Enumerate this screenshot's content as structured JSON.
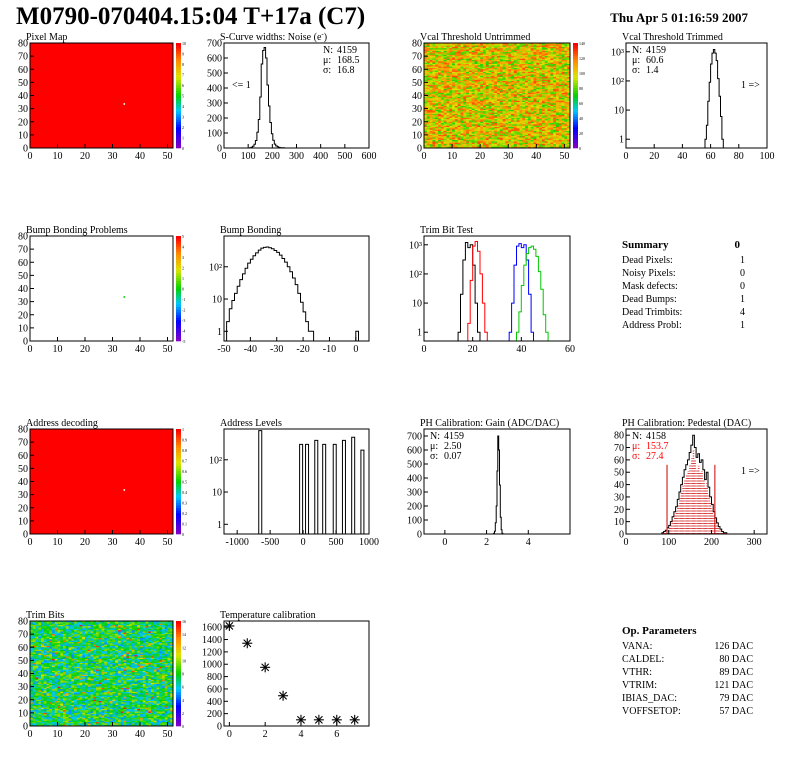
{
  "header": {
    "title": "M0790-070404.15:04 T+17a (C7)",
    "date": "Thu Apr  5 01:16:59 2007"
  },
  "palette": {
    "red": "#ff0000",
    "green_trim": "#00c800",
    "blue_trim": "#0000ff",
    "hist_line": "#000000"
  },
  "chart_data": [
    {
      "id": "pixel_map",
      "type": "heatmap",
      "title": "Pixel Map",
      "xlim": [
        0,
        52
      ],
      "ylim": [
        0,
        80
      ],
      "xticks": [
        "0",
        "10",
        "20",
        "30",
        "40",
        "50"
      ],
      "yticks": [
        "0",
        "10",
        "20",
        "30",
        "40",
        "50",
        "60",
        "70",
        "80"
      ],
      "fill": "uniform",
      "colorbar": {
        "min": 0,
        "max": 10,
        "labels": [
          "0",
          "1",
          "2",
          "3",
          "4",
          "5",
          "6",
          "7",
          "8",
          "9",
          "10"
        ]
      },
      "values": [
        [
          10
        ]
      ],
      "special_pixels": [
        {
          "x": 34,
          "y": 33,
          "value": 0
        }
      ]
    },
    {
      "id": "scurve_noise",
      "type": "histogram",
      "title": "S-Curve widths: Noise (e",
      "title_sup": "-",
      "title_tail": ")",
      "xlim": [
        0,
        600
      ],
      "ylim": [
        0,
        700
      ],
      "xticks": [
        "0",
        "100",
        "200",
        "300",
        "400",
        "500",
        "600"
      ],
      "yticks": [
        "0",
        "100",
        "200",
        "300",
        "400",
        "500",
        "600",
        "700"
      ],
      "stats": {
        "N": "4159",
        "mean": "168.5",
        "sigma": "16.8"
      },
      "stats_labels": {
        "N": "N:",
        "mean": "μ:",
        "sigma": "σ:"
      },
      "annotation": "<= 1",
      "bins": {
        "x0": 100,
        "width": 6,
        "values": [
          0,
          2,
          5,
          12,
          25,
          50,
          105,
          190,
          340,
          560,
          650,
          670,
          600,
          420,
          280,
          170,
          95,
          52,
          26,
          14,
          8,
          4,
          2,
          1,
          1,
          0
        ]
      }
    },
    {
      "id": "vcal_untrimmed",
      "type": "heatmap",
      "title": "Vcal Threshold Untrimmed",
      "xlim": [
        0,
        52
      ],
      "ylim": [
        0,
        80
      ],
      "xticks": [
        "0",
        "10",
        "20",
        "30",
        "40",
        "50"
      ],
      "yticks": [
        "0",
        "10",
        "20",
        "30",
        "40",
        "50",
        "60",
        "70",
        "80"
      ],
      "fill": "noise_orange",
      "colorbar": {
        "min": 0,
        "max": 140,
        "labels": [
          "0",
          "20",
          "40",
          "60",
          "80",
          "100",
          "120",
          "140"
        ]
      },
      "values": [
        [
          92
        ]
      ]
    },
    {
      "id": "vcal_trimmed",
      "type": "histogram",
      "title": "Vcal Threshold Trimmed",
      "log_y": true,
      "xlim": [
        0,
        100
      ],
      "ylim": [
        0.5,
        2000
      ],
      "xticks": [
        "0",
        "20",
        "40",
        "60",
        "80",
        "100"
      ],
      "yticks": [
        "1",
        "10",
        "10²",
        "10³"
      ],
      "stats": {
        "N": "4159",
        "mean": "60.6",
        "sigma": "1.4"
      },
      "stats_labels": {
        "N": "N:",
        "mean": "μ:",
        "sigma": "σ:"
      },
      "annotation": "1 =>",
      "bins": {
        "x0": 55,
        "width": 1,
        "values": [
          0,
          1,
          3,
          20,
          90,
          380,
          900,
          1200,
          900,
          500,
          120,
          30,
          6,
          1,
          0
        ]
      }
    },
    {
      "id": "bump_problems",
      "type": "heatmap",
      "title": "Bump Bonding Problems",
      "xlim": [
        0,
        52
      ],
      "ylim": [
        0,
        80
      ],
      "xticks": [
        "0",
        "10",
        "20",
        "30",
        "40",
        "50"
      ],
      "yticks": [
        "0",
        "10",
        "20",
        "30",
        "40",
        "50",
        "60",
        "70",
        "80"
      ],
      "fill": "empty",
      "colorbar": {
        "min": -5,
        "max": 5,
        "labels": [
          "-5",
          "-4",
          "-3",
          "-2",
          "-1",
          "0",
          "1",
          "2",
          "3",
          "4",
          "5"
        ]
      },
      "special_pixels": [
        {
          "x": 34,
          "y": 33,
          "value": 1
        }
      ]
    },
    {
      "id": "bump_bonding",
      "type": "histogram",
      "title": "Bump Bonding",
      "log_y": true,
      "xlim": [
        -50,
        5
      ],
      "ylim": [
        0.5,
        900
      ],
      "xticks": [
        "-50",
        "-40",
        "-30",
        "-20",
        "-10",
        "0"
      ],
      "yticks": [
        "1",
        "10",
        "10²"
      ],
      "bins": {
        "x0": -50,
        "width": 1,
        "values": [
          0,
          2,
          5,
          9,
          15,
          25,
          40,
          60,
          90,
          130,
          170,
          220,
          270,
          330,
          380,
          400,
          410,
          390,
          360,
          320,
          280,
          230,
          180,
          140,
          100,
          70,
          45,
          28,
          15,
          8,
          4,
          2,
          1,
          1,
          0,
          0,
          0,
          0,
          0,
          0,
          0,
          0,
          0,
          0,
          0,
          0,
          0,
          0,
          0,
          0,
          1,
          0
        ]
      }
    },
    {
      "id": "trim_bit_test",
      "type": "histogram",
      "title": "Trim Bit Test",
      "log_y": true,
      "xlim": [
        0,
        60
      ],
      "ylim": [
        0.5,
        2000
      ],
      "xticks": [
        "0",
        "20",
        "40",
        "60"
      ],
      "yticks": [
        "1",
        "10",
        "10²",
        "10³"
      ],
      "series": [
        {
          "color": "#000000",
          "x0": 14,
          "values": [
            1,
            20,
            300,
            1200,
            800,
            1000,
            200,
            10,
            1
          ]
        },
        {
          "color": "#ff0000",
          "x0": 18,
          "values": [
            2,
            60,
            900,
            1300,
            600,
            100,
            10,
            1
          ]
        },
        {
          "color": "#0000ff",
          "x0": 35,
          "values": [
            1,
            10,
            200,
            900,
            1100,
            800,
            1000,
            300,
            20,
            1
          ]
        },
        {
          "color": "#00c800",
          "x0": 38,
          "values": [
            1,
            5,
            40,
            200,
            500,
            800,
            900,
            700,
            400,
            120,
            30,
            4,
            1
          ]
        }
      ]
    },
    {
      "id": "address_decoding",
      "type": "heatmap",
      "title": "Address decoding",
      "xlim": [
        0,
        52
      ],
      "ylim": [
        0,
        80
      ],
      "xticks": [
        "0",
        "10",
        "20",
        "30",
        "40",
        "50"
      ],
      "yticks": [
        "0",
        "10",
        "20",
        "30",
        "40",
        "50",
        "60",
        "70",
        "80"
      ],
      "fill": "uniform",
      "colorbar": {
        "min": 0,
        "max": 1,
        "labels": [
          "0",
          "0.1",
          "0.2",
          "0.3",
          "0.4",
          "0.5",
          "0.6",
          "0.7",
          "0.8",
          "0.9",
          "1"
        ]
      },
      "values": [
        [
          1
        ]
      ],
      "special_pixels": [
        {
          "x": 34,
          "y": 33,
          "value": 0
        }
      ]
    },
    {
      "id": "address_levels",
      "type": "histogram",
      "title": "Address Levels",
      "log_y": true,
      "xlim": [
        -1200,
        1000
      ],
      "ylim": [
        0.5,
        900
      ],
      "xticks": [
        "-1000",
        "-500",
        "0",
        "500",
        "1000"
      ],
      "yticks": [
        "1",
        "10",
        "10²"
      ],
      "spikes": [
        {
          "x": -650,
          "v": 800
        },
        {
          "x": -30,
          "v": 300
        },
        {
          "x": 60,
          "v": 300
        },
        {
          "x": 200,
          "v": 400
        },
        {
          "x": 320,
          "v": 300
        },
        {
          "x": 480,
          "v": 300
        },
        {
          "x": 620,
          "v": 400
        },
        {
          "x": 760,
          "v": 500
        },
        {
          "x": 900,
          "v": 200
        }
      ]
    },
    {
      "id": "ph_gain",
      "type": "histogram",
      "title": "PH Calibration: Gain (ADC/DAC)",
      "xlim": [
        -1,
        6
      ],
      "ylim": [
        0,
        750
      ],
      "xticks": [
        "0",
        "2",
        "4"
      ],
      "yticks": [
        "0",
        "100",
        "200",
        "300",
        "400",
        "500",
        "600",
        "700"
      ],
      "stats": {
        "N": "4159",
        "mean": "2.50",
        "sigma": "0.07"
      },
      "stats_labels": {
        "N": "N:",
        "mean": "μ:",
        "sigma": "σ:"
      },
      "bins": {
        "x0": 2.3,
        "width": 0.04,
        "values": [
          0,
          5,
          20,
          80,
          200,
          450,
          700,
          600,
          350,
          120,
          30,
          5,
          0
        ]
      }
    },
    {
      "id": "ph_pedestal",
      "type": "histogram",
      "title": "PH Calibration: Pedestal (DAC)",
      "xlim": [
        0,
        330
      ],
      "ylim": [
        0,
        85
      ],
      "xticks": [
        "0",
        "100",
        "200",
        "300"
      ],
      "yticks": [
        "0",
        "10",
        "20",
        "30",
        "40",
        "50",
        "60",
        "70",
        "80"
      ],
      "stats": {
        "N": "4158",
        "mean": "153.7",
        "sigma": "27.4"
      },
      "stats_labels": {
        "N": "N:",
        "mean": "μ:",
        "sigma": "σ:"
      },
      "annotation": "1 =>",
      "fit_lines": [
        96,
        208
      ],
      "bins": {
        "x0": 80,
        "width": 4,
        "values": [
          0,
          1,
          2,
          3,
          5,
          7,
          10,
          14,
          18,
          22,
          28,
          34,
          40,
          46,
          52,
          56,
          60,
          66,
          72,
          80,
          70,
          62,
          65,
          58,
          60,
          52,
          44,
          50,
          38,
          30,
          24,
          18,
          13,
          9,
          6,
          4,
          2,
          1,
          1,
          0
        ]
      }
    },
    {
      "id": "trim_bits",
      "type": "heatmap",
      "title": "Trim Bits",
      "xlim": [
        0,
        52
      ],
      "ylim": [
        0,
        80
      ],
      "xticks": [
        "0",
        "10",
        "20",
        "30",
        "40",
        "50"
      ],
      "yticks": [
        "0",
        "10",
        "20",
        "30",
        "40",
        "50",
        "60",
        "70",
        "80"
      ],
      "fill": "noise_green",
      "colorbar": {
        "min": 0,
        "max": 16,
        "labels": [
          "0",
          "2",
          "4",
          "6",
          "8",
          "10",
          "12",
          "14",
          "16"
        ]
      },
      "values": [
        [
          8
        ]
      ]
    },
    {
      "id": "temperature_calibration",
      "type": "scatter",
      "title": "Temperature calibration",
      "xlim": [
        -0.3,
        7.8
      ],
      "ylim": [
        0,
        1700
      ],
      "xticks": [
        "0",
        "2",
        "4",
        "6"
      ],
      "yticks": [
        "0",
        "200",
        "400",
        "600",
        "800",
        "1000",
        "1200",
        "1400",
        "1600"
      ],
      "x": [
        0,
        1,
        2,
        3,
        4,
        5,
        6,
        7
      ],
      "y": [
        1620,
        1340,
        950,
        490,
        100,
        100,
        100,
        100
      ]
    }
  ],
  "summary": {
    "title": "Summary",
    "total": "0",
    "rows": [
      {
        "label": "Dead Pixels:",
        "value": "1"
      },
      {
        "label": "Noisy Pixels:",
        "value": "0"
      },
      {
        "label": "Mask defects:",
        "value": "0"
      },
      {
        "label": "Dead Bumps:",
        "value": "1"
      },
      {
        "label": "Dead Trimbits:",
        "value": "4"
      },
      {
        "label": "Address Probl:",
        "value": "1"
      }
    ]
  },
  "op_params": {
    "title": "Op. Parameters",
    "rows": [
      {
        "label": "VANA:",
        "value": "126 DAC"
      },
      {
        "label": "CALDEL:",
        "value": "80 DAC"
      },
      {
        "label": "VTHR:",
        "value": "89 DAC"
      },
      {
        "label": "VTRIM:",
        "value": "121 DAC"
      },
      {
        "label": "IBIAS_DAC:",
        "value": "79 DAC"
      },
      {
        "label": "VOFFSETOP:",
        "value": "57 DAC"
      }
    ]
  }
}
